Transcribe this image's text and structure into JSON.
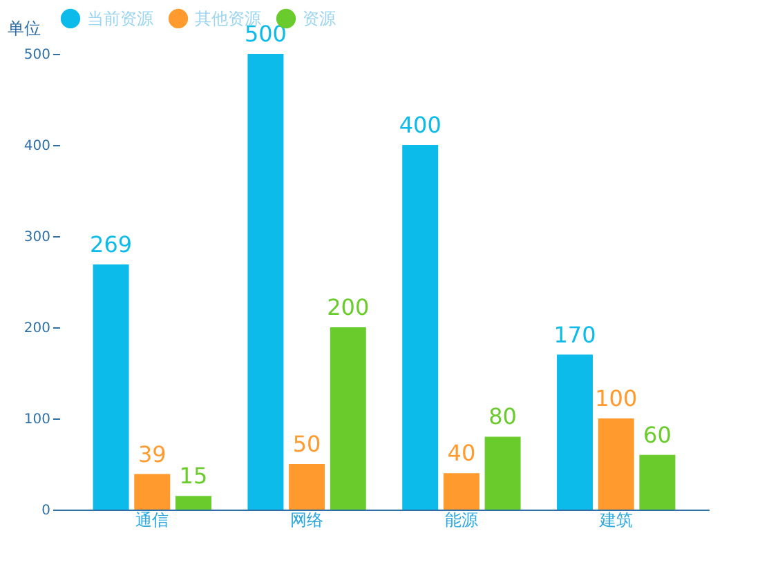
{
  "chart_data": {
    "type": "bar",
    "ylabel": "单位",
    "categories": [
      "通信",
      "网络",
      "能源",
      "建筑"
    ],
    "series": [
      {
        "name": "当前资源",
        "color": "#0cbbe9",
        "values": [
          269,
          500,
          400,
          170
        ]
      },
      {
        "name": "其他资源",
        "color": "#ff9a2e",
        "values": [
          39,
          50,
          40,
          100
        ]
      },
      {
        "name": "资源",
        "color": "#6acb2c",
        "values": [
          15,
          200,
          80,
          60
        ]
      }
    ],
    "ylim": [
      0,
      500
    ],
    "yticks": [
      0,
      100,
      200,
      300,
      400,
      500
    ],
    "grid": false,
    "legend": "top",
    "data_labels": true
  }
}
